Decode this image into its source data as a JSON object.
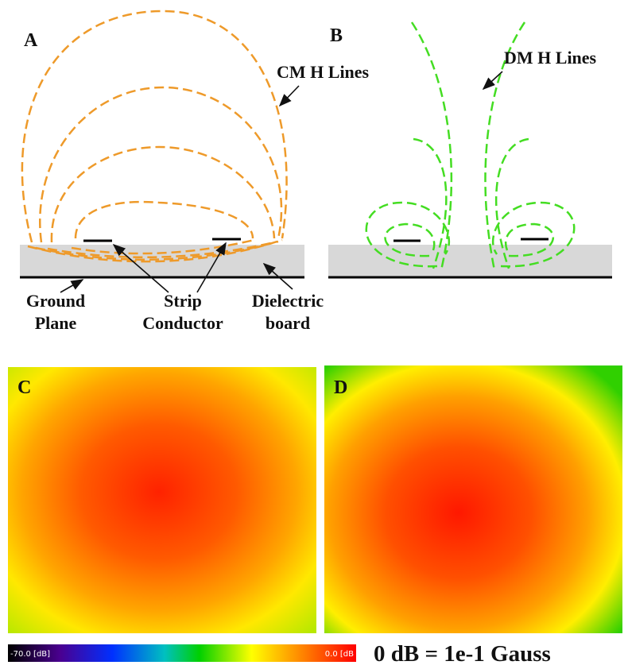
{
  "panels": {
    "a": {
      "label": "A",
      "lines_label": "CM H Lines"
    },
    "b": {
      "label": "B",
      "lines_label": "DM H Lines"
    },
    "c": {
      "label": "C"
    },
    "d": {
      "label": "D"
    }
  },
  "annotations": {
    "ground_plane": [
      "Ground",
      "Plane"
    ],
    "strip_conductor": [
      "Strip",
      "Conductor"
    ],
    "dielectric_board": [
      "Dielectric",
      "board"
    ]
  },
  "colorbar": {
    "min_label": "-70.0 [dB]",
    "max_label": "0.0 [dB"
  },
  "reference": "0 dB = 1e-1 Gauss"
}
